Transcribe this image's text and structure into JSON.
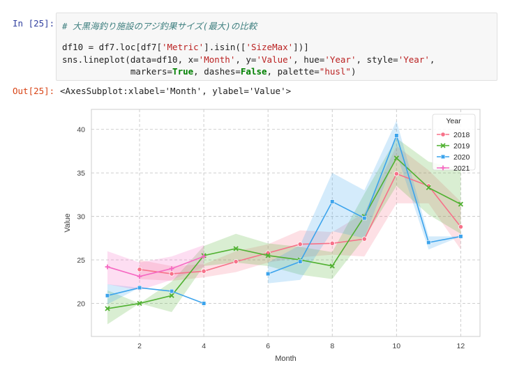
{
  "cell": {
    "in_prompt": "In [25]:",
    "out_prompt": "Out[25]:",
    "output_text": "<AxesSubplot:xlabel='Month', ylabel='Value'>",
    "code": {
      "line1": "# 大黒海釣り施設のアジ釣果サイズ(最大)の比較",
      "line2_a": "df10 = df7.loc[df7[",
      "line2_s1": "'Metric'",
      "line2_b": "].isin([",
      "line2_s2": "'SizeMax'",
      "line2_c": "])]",
      "line3_a": "sns.lineplot(data=df10, x=",
      "line3_s1": "'Month'",
      "line3_b": ", y=",
      "line3_s2": "'Value'",
      "line3_c": ", hue=",
      "line3_s3": "'Year'",
      "line3_d": ", style=",
      "line3_s4": "'Year'",
      "line3_e": ",",
      "line4_a": "             markers=",
      "line4_k1": "True",
      "line4_b": ", dashes=",
      "line4_k2": "False",
      "line4_c": ", palette=",
      "line4_s1": "\"husl\"",
      "line4_d": ")"
    }
  },
  "chart_data": {
    "type": "line",
    "xlabel": "Month",
    "ylabel": "Value",
    "xlim": [
      0.5,
      12.6
    ],
    "ylim": [
      16.2,
      42.3
    ],
    "xticks": [
      2,
      4,
      6,
      8,
      10,
      12
    ],
    "yticks": [
      20,
      25,
      30,
      35,
      40
    ],
    "grid": true,
    "grid_style": "dashed",
    "legend_title": "Year",
    "legend_position": "top-right",
    "series": [
      {
        "name": "2018",
        "color": "#f77189",
        "marker": "circle",
        "x": [
          1,
          2,
          3,
          4,
          5,
          6,
          7,
          8,
          9,
          10,
          11,
          12
        ],
        "values": [
          null,
          23.9,
          23.4,
          23.7,
          24.8,
          25.8,
          26.8,
          26.9,
          27.4,
          34.9,
          33.5,
          28.8
        ],
        "ci_low": [
          null,
          22.8,
          22.6,
          23.0,
          23.6,
          24.7,
          25.3,
          25.6,
          25.4,
          31.5,
          31.5,
          26.2
        ],
        "ci_high": [
          null,
          25.0,
          24.3,
          24.5,
          26.0,
          26.8,
          28.4,
          28.2,
          30.4,
          38.1,
          35.3,
          31.7
        ]
      },
      {
        "name": "2019",
        "color": "#50b131",
        "marker": "x",
        "x": [
          1,
          2,
          3,
          4,
          5,
          6,
          7,
          8,
          9,
          10,
          11,
          12
        ],
        "values": [
          19.4,
          20.0,
          20.9,
          25.5,
          26.3,
          25.5,
          25.0,
          24.3,
          30.0,
          36.7,
          33.3,
          31.4
        ],
        "ci_low": [
          17.6,
          null,
          19.0,
          24.3,
          24.7,
          24.3,
          23.3,
          22.8,
          27.5,
          33.5,
          30.2,
          28.0
        ],
        "ci_high": [
          21.5,
          null,
          22.5,
          26.6,
          28.0,
          26.9,
          26.5,
          25.9,
          32.6,
          39.0,
          36.3,
          35.4
        ]
      },
      {
        "name": "2020",
        "color": "#3ba3ec",
        "marker": "square",
        "x": [
          1,
          2,
          3,
          4,
          5,
          6,
          7,
          8,
          9,
          10,
          11,
          12
        ],
        "values": [
          20.9,
          21.8,
          21.4,
          20.0,
          null,
          23.4,
          24.8,
          31.7,
          29.8,
          39.3,
          27.0,
          27.7
        ],
        "ci_low": [
          19.9,
          null,
          null,
          null,
          null,
          22.3,
          22.7,
          28.3,
          27.5,
          37.2,
          26.2,
          null
        ],
        "ci_high": [
          22.2,
          null,
          null,
          null,
          null,
          24.7,
          26.7,
          35.0,
          33.0,
          41.0,
          27.7,
          null
        ]
      },
      {
        "name": "2021",
        "color": "#f668c2",
        "marker": "plus",
        "x": [
          1,
          2,
          3,
          4,
          5,
          6,
          7,
          8,
          9,
          10,
          11,
          12
        ],
        "values": [
          24.2,
          23.1,
          24.0,
          25.4,
          null,
          null,
          null,
          null,
          null,
          null,
          null,
          null
        ],
        "ci_low": [
          22.2,
          21.5,
          22.7,
          24.2,
          null,
          null,
          null,
          null,
          null,
          null,
          null,
          null
        ],
        "ci_high": [
          26.0,
          24.7,
          25.4,
          26.7,
          null,
          null,
          null,
          null,
          null,
          null,
          null,
          null
        ]
      }
    ]
  }
}
